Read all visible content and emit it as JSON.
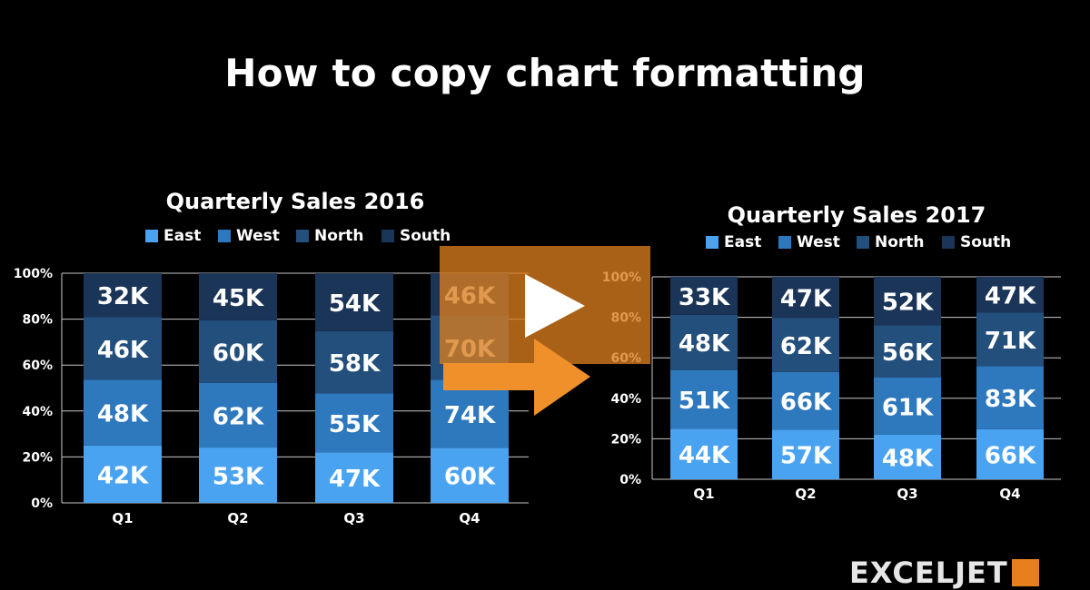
{
  "page": {
    "title": "How to copy chart formatting",
    "logo_text": "EXCELJET"
  },
  "colors": {
    "background": "#000000",
    "east": "#4aa3f0",
    "west": "#2e78bd",
    "north": "#234f7d",
    "south": "#1b3558",
    "overlay": "#d87c1e",
    "arrow": "#f0902a"
  },
  "icons": {
    "play": "play-icon",
    "arrow": "right-arrow-icon"
  },
  "chart_data": [
    {
      "type": "bar",
      "stacked": "percent",
      "title": "Quarterly Sales 2016",
      "categories": [
        "Q1",
        "Q2",
        "Q3",
        "Q4"
      ],
      "series": [
        {
          "name": "East",
          "values": [
            42,
            53,
            47,
            60
          ],
          "labels": [
            "42K",
            "53K",
            "47K",
            "60K"
          ]
        },
        {
          "name": "West",
          "values": [
            48,
            62,
            55,
            74
          ],
          "labels": [
            "48K",
            "62K",
            "55K",
            "74K"
          ]
        },
        {
          "name": "North",
          "values": [
            46,
            60,
            58,
            70
          ],
          "labels": [
            "46K",
            "60K",
            "58K",
            "70K"
          ]
        },
        {
          "name": "South",
          "values": [
            32,
            45,
            54,
            46
          ],
          "labels": [
            "32K",
            "45K",
            "54K",
            "46K"
          ]
        }
      ],
      "ylim": [
        0,
        100
      ],
      "yticks": [
        "0%",
        "20%",
        "40%",
        "60%",
        "80%",
        "100%"
      ],
      "legend": "top",
      "grid": true
    },
    {
      "type": "bar",
      "stacked": "percent",
      "title": "Quarterly Sales 2017",
      "categories": [
        "Q1",
        "Q2",
        "Q3",
        "Q4"
      ],
      "series": [
        {
          "name": "East",
          "values": [
            44,
            57,
            48,
            66
          ],
          "labels": [
            "44K",
            "57K",
            "48K",
            "66K"
          ]
        },
        {
          "name": "West",
          "values": [
            51,
            66,
            61,
            83
          ],
          "labels": [
            "51K",
            "66K",
            "61K",
            "83K"
          ]
        },
        {
          "name": "North",
          "values": [
            48,
            62,
            56,
            71
          ],
          "labels": [
            "48K",
            "62K",
            "56K",
            "71K"
          ]
        },
        {
          "name": "South",
          "values": [
            33,
            47,
            52,
            47
          ],
          "labels": [
            "33K",
            "47K",
            "52K",
            "47K"
          ]
        }
      ],
      "ylim": [
        0,
        100
      ],
      "yticks": [
        "0%",
        "20%",
        "40%",
        "60%",
        "80%",
        "100%"
      ],
      "legend": "top",
      "grid": true
    }
  ]
}
